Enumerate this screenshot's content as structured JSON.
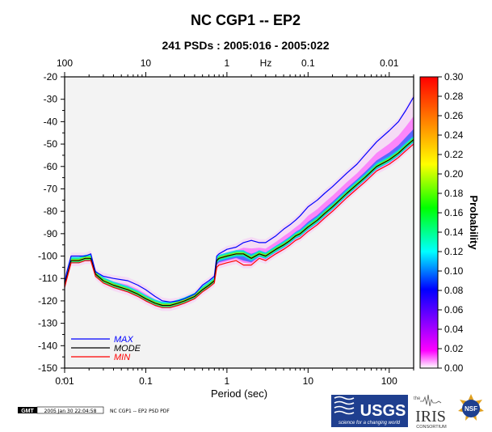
{
  "chart_data": {
    "type": "heatmap",
    "title": "NC CGP1 -- EP2",
    "subtitle": "241 PSDs : 2005:016 - 2005:022",
    "xlabel": "Period (sec)",
    "top_axis_label": "Hz",
    "colorbar_label": "Probability",
    "x_scale": "log",
    "xlim": [
      0.01,
      200
    ],
    "ylim": [
      -150,
      -20
    ],
    "x_ticks": [
      "0.01",
      "0.1",
      "1",
      "10",
      "100"
    ],
    "x_tick_values": [
      0.01,
      0.1,
      1,
      10,
      100
    ],
    "top_ticks": [
      "100",
      "10",
      "1",
      "0.1",
      "0.01"
    ],
    "top_tick_periods": [
      0.01,
      0.1,
      1,
      10,
      100
    ],
    "y_ticks": [
      "-20",
      "-30",
      "-40",
      "-50",
      "-60",
      "-70",
      "-80",
      "-90",
      "-100",
      "-110",
      "-120",
      "-130",
      "-140",
      "-150"
    ],
    "colorbar_ticks": [
      "0.30",
      "0.28",
      "0.26",
      "0.24",
      "0.22",
      "0.20",
      "0.18",
      "0.16",
      "0.14",
      "0.12",
      "0.10",
      "0.08",
      "0.06",
      "0.04",
      "0.02",
      "0.00"
    ],
    "colorbar_colors": [
      "#ffffff",
      "#ff00ff",
      "#0000ff",
      "#00ffff",
      "#00ff00",
      "#ffff00",
      "#ff8000",
      "#ff0000"
    ],
    "series": [
      {
        "name": "MAX",
        "color": "#0000ff",
        "x": [
          0.01,
          0.0105,
          0.012,
          0.015,
          0.018,
          0.021,
          0.024,
          0.03,
          0.04,
          0.06,
          0.08,
          0.1,
          0.13,
          0.16,
          0.2,
          0.25,
          0.3,
          0.4,
          0.5,
          0.6,
          0.7,
          0.75,
          0.8,
          1,
          1.3,
          1.6,
          2,
          2.5,
          3,
          4,
          5,
          6,
          7,
          8,
          10,
          13,
          16,
          20,
          30,
          40,
          50,
          70,
          100,
          130,
          160,
          200
        ],
        "y": [
          -112,
          -108,
          -100,
          -100,
          -100,
          -99,
          -107,
          -109,
          -110,
          -111,
          -113,
          -115,
          -118,
          -120,
          -120.5,
          -120,
          -119,
          -117,
          -113,
          -111,
          -109,
          -100,
          -99,
          -97,
          -96,
          -94,
          -93,
          -94,
          -94,
          -91,
          -88,
          -86,
          -84,
          -82,
          -78,
          -75,
          -72,
          -69,
          -63,
          -59,
          -55,
          -49,
          -44,
          -40,
          -35,
          -29
        ]
      },
      {
        "name": "MODE",
        "color": "#000000",
        "x": [
          0.01,
          0.0105,
          0.012,
          0.015,
          0.018,
          0.021,
          0.024,
          0.03,
          0.04,
          0.06,
          0.08,
          0.1,
          0.13,
          0.16,
          0.2,
          0.25,
          0.3,
          0.4,
          0.5,
          0.6,
          0.7,
          0.75,
          0.8,
          1,
          1.3,
          1.6,
          2,
          2.5,
          3,
          4,
          5,
          6,
          7,
          8,
          10,
          13,
          16,
          20,
          30,
          40,
          50,
          70,
          100,
          130,
          160,
          200
        ],
        "y": [
          -113,
          -110,
          -102,
          -102,
          -101,
          -101,
          -108,
          -111,
          -113,
          -115,
          -117,
          -119,
          -121,
          -122,
          -122,
          -121,
          -120,
          -118,
          -115,
          -113,
          -111,
          -102,
          -101,
          -100,
          -99,
          -99,
          -101,
          -99,
          -100,
          -97,
          -95,
          -93,
          -91,
          -90,
          -87,
          -84,
          -81,
          -78,
          -72,
          -68,
          -65,
          -60,
          -57,
          -54,
          -51,
          -48
        ]
      },
      {
        "name": "MIN",
        "color": "#ff0000",
        "x": [
          0.01,
          0.0105,
          0.012,
          0.015,
          0.018,
          0.021,
          0.024,
          0.03,
          0.04,
          0.06,
          0.08,
          0.1,
          0.13,
          0.16,
          0.2,
          0.25,
          0.3,
          0.4,
          0.5,
          0.6,
          0.7,
          0.75,
          0.8,
          1,
          1.3,
          1.6,
          2,
          2.5,
          3,
          4,
          5,
          6,
          7,
          8,
          10,
          13,
          16,
          20,
          30,
          40,
          50,
          70,
          100,
          130,
          160,
          200
        ],
        "y": [
          -114,
          -111,
          -103,
          -103,
          -102,
          -102,
          -109,
          -112,
          -114,
          -116,
          -118,
          -120,
          -122,
          -123,
          -123,
          -122,
          -121,
          -119,
          -116,
          -114,
          -112,
          -105,
          -104,
          -103,
          -102,
          -104,
          -104,
          -101,
          -102,
          -99,
          -97,
          -95,
          -93,
          -92,
          -89,
          -86,
          -83,
          -80,
          -74,
          -70,
          -67,
          -62,
          -59,
          -56,
          -53,
          -50
        ]
      }
    ]
  },
  "footer": {
    "gmt_logo": "GMT",
    "gmt_timestamp": "2005 Jan 30 22:04:58",
    "caption": "NC CGP1 -- EP2 PSD PDF",
    "usgs_logo": "USGS",
    "usgs_tagline": "science for a changing world",
    "iris_prefix": "the",
    "iris_logo": "IRIS",
    "iris_sub": "CONSORTIUM",
    "nsf_logo": "NSF"
  }
}
